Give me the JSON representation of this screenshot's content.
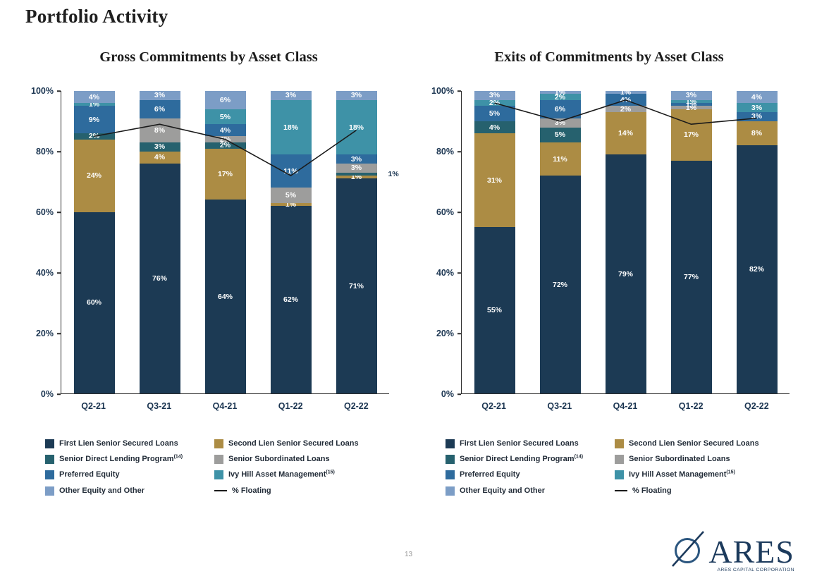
{
  "page": {
    "title": "Portfolio Activity",
    "page_number": "13"
  },
  "logo": {
    "name": "ARES",
    "subtitle": "ARES CAPITAL CORPORATION"
  },
  "legend": {
    "columns": [
      [
        {
          "label": "First Lien Senior Secured Loans",
          "color": "#1C3A54"
        },
        {
          "label": "Senior Direct Lending Program",
          "sup": "(14)",
          "color": "#26616E"
        },
        {
          "label": "Preferred Equity",
          "color": "#2E6B9D"
        },
        {
          "label": "Other Equity and Other",
          "color": "#7C9DC6"
        }
      ],
      [
        {
          "label": "Second Lien Senior Secured Loans",
          "color": "#AC8C44"
        },
        {
          "label": "Senior Subordinated Loans",
          "color": "#9D9D9C"
        },
        {
          "label": "Ivy Hill Asset Management",
          "sup": "(15)",
          "color": "#3E92A7"
        },
        {
          "label": "% Floating",
          "type": "line"
        }
      ]
    ]
  },
  "chart_data": [
    {
      "type": "stacked-bar-with-line",
      "title": "Gross Commitments by Asset Class",
      "categories": [
        "Q2-21",
        "Q3-21",
        "Q4-21",
        "Q1-22",
        "Q2-22"
      ],
      "ylim": [
        0,
        100
      ],
      "yticks": [
        "100%",
        "80%",
        "60%",
        "40%",
        "20%",
        "0%"
      ],
      "series": [
        {
          "name": "First Lien Senior Secured Loans",
          "color": "#1C3A54",
          "values": [
            60,
            76,
            64,
            62,
            71
          ]
        },
        {
          "name": "Second Lien Senior Secured Loans",
          "color": "#AC8C44",
          "values": [
            24,
            4,
            17,
            1,
            1
          ]
        },
        {
          "name": "Senior Direct Lending Program",
          "color": "#26616E",
          "values": [
            2,
            3,
            2,
            0,
            1
          ]
        },
        {
          "name": "Senior Subordinated Loans",
          "color": "#9D9D9C",
          "values": [
            0,
            8,
            2,
            5,
            3
          ]
        },
        {
          "name": "Preferred Equity",
          "color": "#2E6B9D",
          "values": [
            9,
            6,
            4,
            11,
            3
          ]
        },
        {
          "name": "Ivy Hill Asset Management",
          "color": "#3E92A7",
          "values": [
            1,
            0,
            5,
            18,
            18
          ]
        },
        {
          "name": "Other Equity and Other",
          "color": "#7C9DC6",
          "values": [
            4,
            3,
            6,
            3,
            3
          ]
        }
      ],
      "line": {
        "name": "% Floating",
        "color": "#1A1A1A",
        "values": [
          85,
          89,
          84,
          72,
          87
        ]
      },
      "callouts": [
        {
          "category": 4,
          "series": 2
        }
      ]
    },
    {
      "type": "stacked-bar-with-line",
      "title": "Exits of Commitments by Asset Class",
      "categories": [
        "Q2-21",
        "Q3-21",
        "Q4-21",
        "Q1-22",
        "Q2-22"
      ],
      "ylim": [
        0,
        100
      ],
      "yticks": [
        "100%",
        "80%",
        "60%",
        "40%",
        "20%",
        "0%"
      ],
      "series": [
        {
          "name": "First Lien Senior Secured Loans",
          "color": "#1C3A54",
          "values": [
            55,
            72,
            79,
            77,
            82
          ]
        },
        {
          "name": "Second Lien Senior Secured Loans",
          "color": "#AC8C44",
          "values": [
            31,
            11,
            14,
            17,
            8
          ]
        },
        {
          "name": "Senior Direct Lending Program",
          "color": "#26616E",
          "values": [
            4,
            5,
            0,
            0,
            0
          ]
        },
        {
          "name": "Senior Subordinated Loans",
          "color": "#9D9D9C",
          "values": [
            0,
            3,
            2,
            1,
            0
          ]
        },
        {
          "name": "Preferred Equity",
          "color": "#2E6B9D",
          "values": [
            5,
            6,
            4,
            1,
            3
          ]
        },
        {
          "name": "Ivy Hill Asset Management",
          "color": "#3E92A7",
          "values": [
            2,
            2,
            0,
            1,
            3
          ]
        },
        {
          "name": "Other Equity and Other",
          "color": "#7C9DC6",
          "values": [
            3,
            1,
            1,
            3,
            4
          ]
        }
      ],
      "line": {
        "name": "% Floating",
        "color": "#1A1A1A",
        "values": [
          96,
          90,
          97,
          89,
          91
        ]
      }
    }
  ]
}
